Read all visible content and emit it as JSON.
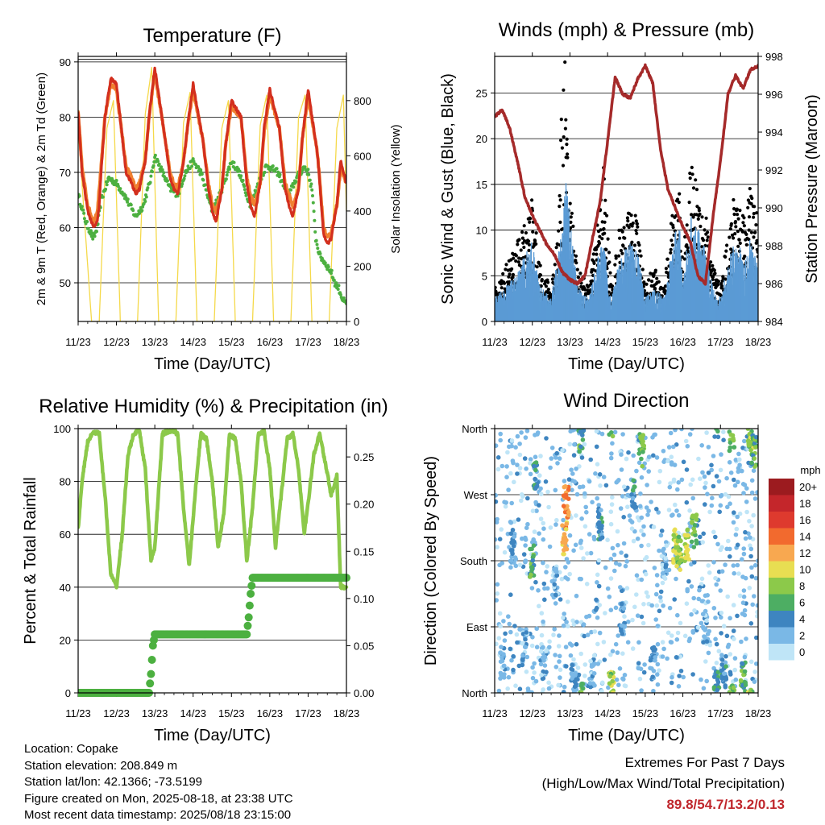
{
  "footer": {
    "location": "Location: Copake",
    "elevation": "Station elevation: 208.849 m",
    "latlon": "Station lat/lon: 42.1366; -73.5199",
    "created": "Figure created on Mon, 2025-08-18, at 23:38 UTC",
    "recent": "Most recent data timestamp: 2025/08/18 23:15:00",
    "extremes_title": "Extremes For Past 7 Days",
    "extremes_sub": "(High/Low/Max Wind/Total Precipitation)",
    "extremes_values": "89.8/54.7/13.2/0.13"
  },
  "colors": {
    "temp2m": "#d32f1e",
    "temp9m": "#f08030",
    "dewpoint": "#4cb040",
    "solar": "#f5d94a",
    "wind": "#5b9bd5",
    "gust": "#000000",
    "pressure": "#a52a2a",
    "rh": "#8cc94a",
    "precip": "#4cb040"
  },
  "chart_data": [
    {
      "type": "line",
      "title": "Temperature (F)",
      "xlabel": "Time (Day/UTC)",
      "ylabel": "2m & 9m T (Red, Orange) & 2m Td (Green)",
      "ylabel_right": "Solar Insolation (Yellow)",
      "x_ticks": [
        "11/23",
        "12/23",
        "13/23",
        "14/23",
        "15/23",
        "16/23",
        "17/23",
        "18/23"
      ],
      "xlim": [
        0,
        7
      ],
      "ylim": [
        43,
        91
      ],
      "y_ticks": [
        50,
        60,
        70,
        80,
        90
      ],
      "y2lim": [
        0,
        960
      ],
      "y2_ticks": [
        0,
        200,
        400,
        600,
        800
      ],
      "grid": "horizontal",
      "series": [
        {
          "name": "2m T",
          "axis": "left",
          "x": [
            0,
            0.1,
            0.25,
            0.4,
            0.5,
            0.55,
            0.6,
            0.7,
            0.85,
            1.0,
            1.25,
            1.4,
            1.5,
            1.6,
            1.75,
            1.85,
            2.0,
            2.25,
            2.4,
            2.5,
            2.6,
            2.75,
            2.85,
            3.0,
            3.25,
            3.4,
            3.5,
            3.6,
            3.75,
            3.85,
            4.0,
            4.25,
            4.4,
            4.5,
            4.6,
            4.75,
            4.85,
            5.0,
            5.25,
            5.4,
            5.5,
            5.6,
            5.75,
            5.85,
            6.0,
            6.25,
            6.4,
            6.5,
            6.6,
            6.75,
            6.85,
            7.0
          ],
          "y": [
            81,
            70,
            63,
            60,
            61,
            64,
            70,
            80,
            87,
            86,
            70,
            68,
            66,
            67,
            72,
            80,
            89,
            77,
            69,
            67,
            66,
            72,
            78,
            86,
            76,
            67,
            63,
            61,
            67,
            75,
            83,
            80,
            68,
            64,
            62,
            68,
            78,
            85,
            78,
            67,
            64,
            62,
            67,
            76,
            85,
            73,
            59,
            57,
            58,
            64,
            72,
            68
          ]
        },
        {
          "name": "9m T",
          "axis": "left",
          "x": [
            0,
            0.1,
            0.25,
            0.4,
            0.5,
            0.6,
            0.7,
            0.85,
            1.0,
            1.25,
            1.4,
            1.5,
            1.6,
            1.75,
            1.85,
            2.0,
            2.25,
            2.4,
            2.5,
            2.6,
            2.75,
            2.85,
            3.0,
            3.25,
            3.4,
            3.5,
            3.6,
            3.75,
            3.85,
            4.0,
            4.25,
            4.4,
            4.5,
            4.6,
            4.75,
            4.85,
            5.0,
            5.25,
            5.4,
            5.5,
            5.6,
            5.75,
            5.85,
            6.0,
            6.25,
            6.4,
            6.5,
            6.6,
            6.75,
            6.85,
            7.0
          ],
          "y": [
            81,
            71,
            64,
            61,
            63,
            71,
            80,
            86,
            85,
            71,
            69,
            67,
            68,
            72,
            80,
            88,
            77,
            70,
            68,
            67,
            72,
            78,
            85,
            76,
            68,
            64,
            63,
            67,
            75,
            82,
            80,
            69,
            66,
            64,
            68,
            77,
            84,
            78,
            68,
            66,
            64,
            67,
            76,
            84,
            73,
            60,
            58,
            59,
            64,
            71,
            68
          ]
        },
        {
          "name": "2m Td",
          "axis": "left",
          "x": [
            0,
            0.2,
            0.4,
            0.5,
            0.6,
            0.8,
            1.0,
            1.2,
            1.5,
            1.7,
            1.9,
            2.0,
            2.2,
            2.4,
            2.6,
            2.8,
            3.0,
            3.2,
            3.5,
            3.7,
            3.9,
            4.0,
            4.2,
            4.5,
            4.7,
            4.9,
            5.0,
            5.2,
            5.5,
            5.7,
            5.9,
            6.0,
            6.1,
            6.2,
            6.3,
            6.5,
            6.6,
            6.7,
            6.8,
            6.9,
            7.0
          ],
          "y": [
            66,
            61,
            58,
            60,
            65,
            69,
            68,
            66,
            62,
            64,
            69,
            73,
            70,
            67,
            66,
            70,
            72,
            70,
            63,
            66,
            70,
            72,
            70,
            64,
            68,
            71,
            71,
            70,
            66,
            69,
            71,
            70,
            67,
            58,
            55,
            53,
            52,
            50,
            49,
            47,
            46
          ]
        },
        {
          "name": "Solar",
          "axis": "right",
          "x": [
            0,
            0.35,
            0.55,
            0.75,
            0.92,
            1.1,
            1.35,
            1.55,
            1.75,
            1.92,
            2.1,
            2.35,
            2.55,
            2.75,
            2.92,
            3.1,
            3.35,
            3.55,
            3.75,
            3.92,
            4.1,
            4.35,
            4.55,
            4.75,
            4.92,
            5.1,
            5.35,
            5.55,
            5.75,
            5.92,
            6.1,
            6.35,
            6.55,
            6.75,
            6.92,
            7.0
          ],
          "y": [
            700,
            0,
            0,
            700,
            800,
            0,
            0,
            0,
            750,
            920,
            0,
            0,
            0,
            720,
            830,
            0,
            0,
            0,
            700,
            800,
            0,
            0,
            0,
            710,
            820,
            0,
            0,
            0,
            740,
            820,
            0,
            0,
            0,
            700,
            820,
            400
          ]
        }
      ]
    },
    {
      "type": "scatter",
      "title": "Winds (mph) & Pressure (mb)",
      "xlabel": "Time (Day/UTC)",
      "ylabel": "Sonic Wind & Gust (Blue, Black)",
      "ylabel_right": "Station Pressure (Maroon)",
      "x_ticks": [
        "11/23",
        "12/23",
        "13/23",
        "14/23",
        "15/23",
        "16/23",
        "17/23",
        "18/23"
      ],
      "xlim": [
        0,
        7
      ],
      "ylim": [
        0,
        29
      ],
      "y_ticks": [
        0,
        5,
        10,
        15,
        20,
        25
      ],
      "y2lim": [
        984,
        998
      ],
      "y2_ticks": [
        984,
        986,
        988,
        990,
        992,
        994,
        996,
        998
      ],
      "grid": "horizontal",
      "series": [
        {
          "name": "Sonic Wind",
          "axis": "left",
          "x": [
            0,
            0.3,
            0.6,
            0.8,
            1.0,
            1.2,
            1.5,
            1.7,
            1.9,
            2.0,
            2.2,
            2.5,
            2.7,
            2.9,
            3.1,
            3.3,
            3.6,
            3.8,
            4.0,
            4.2,
            4.5,
            4.7,
            4.9,
            5.0,
            5.2,
            5.4,
            5.6,
            5.8,
            6.0,
            6.2,
            6.4,
            6.6,
            6.8,
            7.0
          ],
          "y": [
            2,
            3,
            4,
            6,
            7,
            3,
            2,
            6,
            12,
            9,
            3,
            2,
            5,
            7,
            2,
            5,
            7,
            6,
            2,
            3,
            2,
            6,
            9,
            3,
            9,
            8,
            6,
            3,
            2,
            5,
            7,
            6,
            7,
            5
          ]
        },
        {
          "name": "Gust",
          "axis": "left",
          "x": [
            0,
            0.3,
            0.6,
            0.8,
            1.0,
            1.2,
            1.5,
            1.7,
            1.85,
            1.9,
            2.0,
            2.2,
            2.5,
            2.7,
            2.9,
            3.1,
            3.3,
            3.6,
            3.8,
            4.0,
            4.2,
            4.5,
            4.7,
            4.9,
            5.0,
            5.2,
            5.4,
            5.6,
            5.8,
            6.0,
            6.2,
            6.4,
            6.6,
            6.8,
            7.0
          ],
          "y": [
            3,
            5,
            7,
            9,
            11,
            5,
            3,
            9,
            27,
            18,
            12,
            5,
            3,
            8,
            14,
            3,
            8,
            10,
            9,
            3,
            5,
            3,
            9,
            12,
            5,
            14,
            12,
            10,
            5,
            3,
            8,
            12,
            10,
            12,
            9
          ]
        },
        {
          "name": "Pressure",
          "axis": "right",
          "x": [
            0,
            0.2,
            0.4,
            0.6,
            0.8,
            1.0,
            1.2,
            1.4,
            1.6,
            1.8,
            2.0,
            2.2,
            2.4,
            2.6,
            2.8,
            3.0,
            3.2,
            3.4,
            3.6,
            3.8,
            4.0,
            4.2,
            4.4,
            4.6,
            4.8,
            5.0,
            5.2,
            5.4,
            5.6,
            5.8,
            6.0,
            6.2,
            6.4,
            6.6,
            6.8,
            7.0
          ],
          "y": [
            994.8,
            995.2,
            994.2,
            992.5,
            990.6,
            989.6,
            988.8,
            988,
            987.5,
            986.6,
            986.2,
            986.0,
            986.4,
            988.4,
            990.3,
            993.5,
            996.9,
            996.0,
            995.8,
            996.8,
            997.5,
            996.6,
            993.2,
            991.0,
            990.0,
            989.0,
            988.2,
            986.4,
            986.0,
            989.5,
            992.5,
            996.0,
            997.0,
            996.3,
            997.3,
            997.5
          ]
        }
      ]
    },
    {
      "type": "line",
      "title": "Relative Humidity (%) & Precipitation (in)",
      "xlabel": "Time (Day/UTC)",
      "ylabel": "Percent & Total Rainfall",
      "x_ticks": [
        "11/23",
        "12/23",
        "13/23",
        "14/23",
        "15/23",
        "16/23",
        "17/23",
        "18/23"
      ],
      "xlim": [
        0,
        7
      ],
      "ylim": [
        0,
        100
      ],
      "y_ticks": [
        0,
        20,
        40,
        60,
        80,
        100
      ],
      "y2lim": [
        0,
        0.28
      ],
      "y2_ticks": [
        "0.00",
        "0.05",
        "0.10",
        "0.15",
        "0.20",
        "0.25"
      ],
      "grid": "horizontal",
      "series": [
        {
          "name": "Relative Humidity",
          "axis": "left",
          "x": [
            0,
            0.1,
            0.25,
            0.4,
            0.55,
            0.7,
            0.85,
            1.0,
            1.15,
            1.3,
            1.45,
            1.6,
            1.75,
            1.9,
            2.0,
            2.2,
            2.35,
            2.5,
            2.6,
            2.75,
            2.9,
            3.05,
            3.2,
            3.35,
            3.5,
            3.65,
            3.8,
            3.95,
            4.1,
            4.25,
            4.4,
            4.55,
            4.7,
            4.85,
            5.0,
            5.15,
            5.3,
            5.45,
            5.6,
            5.75,
            5.9,
            6.0,
            6.15,
            6.3,
            6.45,
            6.6,
            6.75,
            6.85,
            7.0
          ],
          "y": [
            62,
            80,
            95,
            99,
            98,
            75,
            45,
            40,
            60,
            90,
            98,
            99,
            85,
            50,
            55,
            98,
            99,
            99,
            98,
            70,
            48,
            75,
            98,
            96,
            80,
            55,
            68,
            98,
            96,
            80,
            50,
            70,
            98,
            99,
            85,
            55,
            75,
            96,
            98,
            85,
            60,
            72,
            90,
            98,
            87,
            75,
            82,
            40,
            40
          ]
        },
        {
          "name": "Total Precipitation",
          "axis": "right",
          "x": [
            0,
            1.5,
            1.85,
            1.9,
            1.95,
            2.0,
            4.4,
            4.45,
            4.5,
            4.55,
            7.0
          ],
          "y": [
            0,
            0,
            0,
            0.02,
            0.05,
            0.062,
            0.062,
            0.08,
            0.105,
            0.122,
            0.122
          ]
        }
      ]
    },
    {
      "type": "scatter",
      "title": "Wind Direction",
      "xlabel": "Time (Day/UTC)",
      "ylabel": "Direction (Colored By Speed)",
      "x_ticks": [
        "11/23",
        "12/23",
        "13/23",
        "14/23",
        "15/23",
        "16/23",
        "17/23",
        "18/23"
      ],
      "xlim": [
        0,
        7
      ],
      "ylim": [
        0,
        360
      ],
      "y_tick_labels": [
        "North",
        "East",
        "South",
        "West",
        "North"
      ],
      "grid": "horizontal",
      "legend_title": "mph",
      "legend_labels": [
        "20+",
        "18",
        "16",
        "14",
        "12",
        "10",
        "8",
        "6",
        "4",
        "2",
        "0"
      ],
      "legend_colors": [
        "#9c1b1f",
        "#c4262b",
        "#de3a2e",
        "#f26a2e",
        "#f8a850",
        "#e8de52",
        "#8cc94a",
        "#4dae63",
        "#3e85c0",
        "#7ab8e6",
        "#bfe5f7"
      ],
      "legend_placement": "right",
      "series": [
        {
          "name": "Direction",
          "x": [
            0.2,
            0.5,
            0.8,
            1.0,
            1.1,
            1.3,
            1.6,
            1.85,
            1.9,
            2.1,
            2.3,
            2.6,
            2.8,
            3.1,
            3.4,
            3.7,
            3.9,
            4.2,
            4.5,
            4.8,
            4.9,
            5.1,
            5.3,
            5.6,
            5.9,
            6.1,
            6.3,
            6.6,
            6.8,
            6.9
          ],
          "y": [
            40,
            200,
            60,
            180,
            300,
            40,
            150,
            210,
            260,
            20,
            350,
            30,
            230,
            10,
            100,
            270,
            330,
            40,
            180,
            200,
            190,
            200,
            220,
            90,
            10,
            30,
            350,
            20,
            345,
            330
          ],
          "speed": [
            2,
            3,
            2,
            6,
            4,
            2,
            2,
            12,
            13,
            3,
            6,
            2,
            4,
            8,
            2,
            4,
            7,
            3,
            2,
            9,
            8,
            9,
            7,
            2,
            5,
            4,
            7,
            6,
            8,
            6
          ]
        }
      ]
    }
  ]
}
